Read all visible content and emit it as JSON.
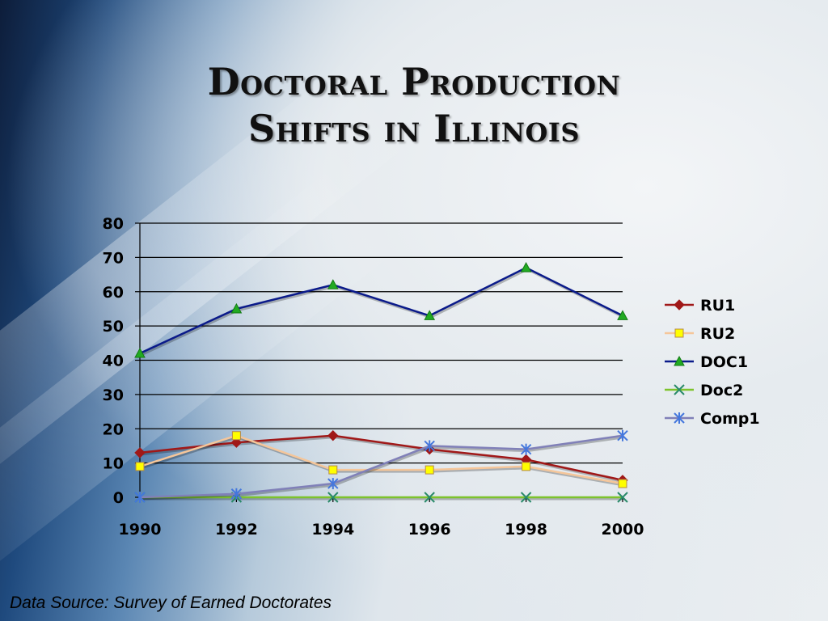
{
  "slide": {
    "title_line1": "Doctoral Production",
    "title_line2": "Shifts in Illinois",
    "source": "Data Source: Survey of Earned Doctorates"
  },
  "chart_data": {
    "type": "line",
    "x": [
      1990,
      1992,
      1994,
      1996,
      1998,
      2000
    ],
    "ylim": [
      0,
      80
    ],
    "yticks": [
      0,
      10,
      20,
      30,
      40,
      50,
      60,
      70,
      80
    ],
    "grid": true,
    "legend": "right",
    "series": [
      {
        "name": "RU1",
        "values": [
          13,
          16,
          18,
          14,
          11,
          5
        ],
        "color": "#a01818",
        "marker": "diamond"
      },
      {
        "name": "RU2",
        "values": [
          9,
          18,
          8,
          8,
          9,
          4
        ],
        "color": "#f5c69a",
        "marker": "square",
        "marker_color": "#ffff00"
      },
      {
        "name": "DOC1",
        "values": [
          42,
          55,
          62,
          53,
          67,
          53
        ],
        "color": "#0a1a8a",
        "marker": "triangle",
        "marker_color": "#22aa22"
      },
      {
        "name": "Doc2",
        "values": [
          0,
          0,
          0,
          0,
          0,
          0
        ],
        "color": "#7dc32c",
        "marker": "x",
        "marker_color": "#2a8a6a"
      },
      {
        "name": "Comp1",
        "values": [
          0,
          1,
          4,
          15,
          14,
          18
        ],
        "color": "#8080b8",
        "marker": "star",
        "marker_color": "#4477dd"
      }
    ]
  }
}
